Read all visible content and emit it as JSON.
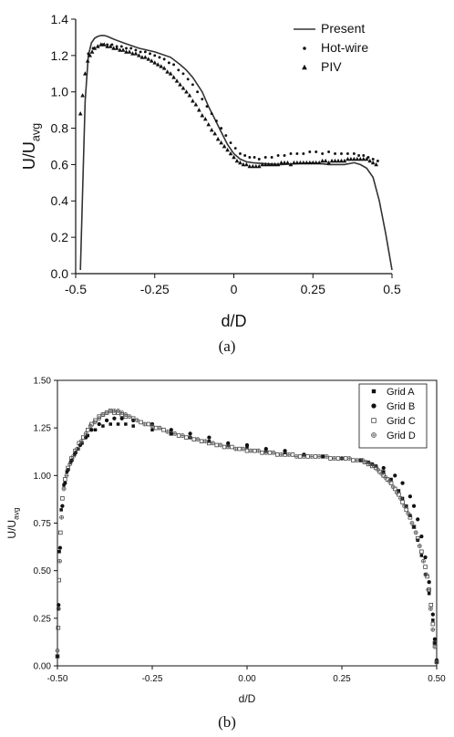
{
  "chart_data": [
    {
      "type": "line",
      "caption": "(a)",
      "xlabel": "d/D",
      "ylabel": "U/Uavg",
      "ylabel_main": "U/U",
      "ylabel_sub": "avg",
      "xlim": [
        -0.5,
        0.5
      ],
      "ylim": [
        0,
        1.4
      ],
      "xticks": [
        -0.5,
        -0.25,
        0,
        0.25,
        0.5
      ],
      "xtick_labels": [
        "-0.5",
        "-0.25",
        "0",
        "0.25",
        "0.5"
      ],
      "yticks": [
        0.0,
        0.2,
        0.4,
        0.6,
        0.8,
        1.0,
        1.2,
        1.4
      ],
      "ytick_labels": [
        "0.0",
        "0.2",
        "0.4",
        "0.6",
        "0.8",
        "1.0",
        "1.2",
        "1.4"
      ],
      "legend_position": "top-right",
      "grid": false,
      "series": [
        {
          "name": "Present",
          "marker": "line",
          "x": [
            -0.485,
            -0.478,
            -0.47,
            -0.46,
            -0.45,
            -0.44,
            -0.43,
            -0.42,
            -0.41,
            -0.4,
            -0.38,
            -0.35,
            -0.3,
            -0.25,
            -0.2,
            -0.17,
            -0.15,
            -0.13,
            -0.1,
            -0.08,
            -0.06,
            -0.04,
            -0.02,
            0.0,
            0.02,
            0.04,
            0.06,
            0.1,
            0.15,
            0.2,
            0.25,
            0.3,
            0.35,
            0.38,
            0.4,
            0.42,
            0.44,
            0.46,
            0.48,
            0.5
          ],
          "y": [
            0.02,
            0.45,
            0.95,
            1.2,
            1.27,
            1.295,
            1.305,
            1.31,
            1.31,
            1.305,
            1.29,
            1.27,
            1.24,
            1.22,
            1.19,
            1.15,
            1.12,
            1.08,
            1.0,
            0.92,
            0.85,
            0.78,
            0.71,
            0.66,
            0.63,
            0.615,
            0.61,
            0.605,
            0.6,
            0.605,
            0.61,
            0.6,
            0.6,
            0.61,
            0.6,
            0.58,
            0.53,
            0.4,
            0.22,
            0.02
          ]
        },
        {
          "name": "Hot-wire",
          "marker": "circle",
          "x": [
            -0.46,
            -0.445,
            -0.43,
            -0.415,
            -0.4,
            -0.385,
            -0.37,
            -0.355,
            -0.34,
            -0.325,
            -0.31,
            -0.295,
            -0.28,
            -0.265,
            -0.25,
            -0.235,
            -0.22,
            -0.205,
            -0.19,
            -0.175,
            -0.16,
            -0.145,
            -0.13,
            -0.115,
            -0.1,
            -0.085,
            -0.07,
            -0.055,
            -0.04,
            -0.025,
            -0.01,
            0.005,
            0.02,
            0.035,
            0.05,
            0.065,
            0.08,
            0.1,
            0.12,
            0.14,
            0.16,
            0.18,
            0.2,
            0.22,
            0.24,
            0.26,
            0.28,
            0.3,
            0.32,
            0.34,
            0.36,
            0.38,
            0.395,
            0.41,
            0.425,
            0.44,
            0.455
          ],
          "y": [
            1.21,
            1.24,
            1.25,
            1.26,
            1.26,
            1.26,
            1.25,
            1.25,
            1.24,
            1.24,
            1.23,
            1.22,
            1.22,
            1.21,
            1.2,
            1.19,
            1.18,
            1.16,
            1.15,
            1.12,
            1.1,
            1.07,
            1.04,
            1.0,
            0.96,
            0.92,
            0.88,
            0.84,
            0.8,
            0.76,
            0.72,
            0.69,
            0.66,
            0.65,
            0.64,
            0.64,
            0.63,
            0.64,
            0.64,
            0.65,
            0.65,
            0.66,
            0.66,
            0.66,
            0.67,
            0.67,
            0.66,
            0.67,
            0.66,
            0.66,
            0.66,
            0.66,
            0.65,
            0.65,
            0.64,
            0.63,
            0.62
          ]
        },
        {
          "name": "PIV",
          "marker": "triangle",
          "x": [
            -0.485,
            -0.478,
            -0.47,
            -0.462,
            -0.455,
            -0.448,
            -0.44,
            -0.43,
            -0.42,
            -0.41,
            -0.4,
            -0.39,
            -0.38,
            -0.37,
            -0.36,
            -0.35,
            -0.34,
            -0.33,
            -0.32,
            -0.31,
            -0.3,
            -0.29,
            -0.28,
            -0.27,
            -0.26,
            -0.25,
            -0.24,
            -0.23,
            -0.22,
            -0.21,
            -0.2,
            -0.19,
            -0.18,
            -0.17,
            -0.16,
            -0.15,
            -0.14,
            -0.13,
            -0.12,
            -0.11,
            -0.1,
            -0.09,
            -0.08,
            -0.07,
            -0.06,
            -0.05,
            -0.04,
            -0.03,
            -0.02,
            -0.01,
            0.0,
            0.01,
            0.02,
            0.03,
            0.04,
            0.05,
            0.06,
            0.07,
            0.08,
            0.09,
            0.1,
            0.11,
            0.12,
            0.13,
            0.14,
            0.15,
            0.16,
            0.17,
            0.18,
            0.19,
            0.2,
            0.21,
            0.22,
            0.23,
            0.24,
            0.25,
            0.26,
            0.27,
            0.28,
            0.29,
            0.3,
            0.31,
            0.32,
            0.33,
            0.34,
            0.35,
            0.36,
            0.37,
            0.38,
            0.39,
            0.4,
            0.41,
            0.42,
            0.43,
            0.44,
            0.45
          ],
          "y": [
            0.88,
            0.98,
            1.1,
            1.17,
            1.2,
            1.22,
            1.24,
            1.25,
            1.26,
            1.26,
            1.25,
            1.25,
            1.24,
            1.24,
            1.23,
            1.23,
            1.22,
            1.22,
            1.21,
            1.21,
            1.2,
            1.19,
            1.19,
            1.18,
            1.17,
            1.16,
            1.15,
            1.14,
            1.13,
            1.11,
            1.1,
            1.08,
            1.06,
            1.04,
            1.02,
            1.0,
            0.98,
            0.95,
            0.93,
            0.9,
            0.87,
            0.85,
            0.82,
            0.79,
            0.77,
            0.74,
            0.72,
            0.7,
            0.68,
            0.66,
            0.64,
            0.62,
            0.61,
            0.6,
            0.6,
            0.59,
            0.59,
            0.59,
            0.59,
            0.6,
            0.6,
            0.6,
            0.6,
            0.6,
            0.6,
            0.61,
            0.61,
            0.61,
            0.6,
            0.61,
            0.61,
            0.61,
            0.61,
            0.61,
            0.61,
            0.61,
            0.61,
            0.61,
            0.62,
            0.62,
            0.61,
            0.62,
            0.62,
            0.62,
            0.62,
            0.62,
            0.63,
            0.63,
            0.63,
            0.63,
            0.63,
            0.63,
            0.63,
            0.62,
            0.61,
            0.6
          ]
        }
      ]
    },
    {
      "type": "scatter",
      "caption": "(b)",
      "xlabel": "d/D",
      "ylabel": "U/Uavg",
      "ylabel_main": "U/U",
      "ylabel_sub": "avg",
      "xlim": [
        -0.5,
        0.5
      ],
      "ylim": [
        0,
        1.5
      ],
      "xticks": [
        -0.5,
        -0.25,
        0,
        0.25,
        0.5
      ],
      "xtick_labels": [
        "-0.50",
        "-0.25",
        "0.00",
        "0.25",
        "0.50"
      ],
      "yticks": [
        0.0,
        0.25,
        0.5,
        0.75,
        1.0,
        1.25,
        1.5
      ],
      "ytick_labels": [
        "0.00",
        "0.25",
        "0.50",
        "0.75",
        "1.00",
        "1.25",
        "1.50"
      ],
      "legend_position": "top-right",
      "grid": false,
      "series": [
        {
          "name": "Grid A",
          "marker": "filled-square",
          "x": [
            -0.5,
            -0.498,
            -0.495,
            -0.49,
            -0.483,
            -0.475,
            -0.465,
            -0.455,
            -0.445,
            -0.435,
            -0.42,
            -0.4,
            -0.38,
            -0.36,
            -0.34,
            -0.32,
            -0.3,
            -0.25,
            -0.2,
            -0.15,
            -0.1,
            -0.05,
            0.0,
            0.05,
            0.1,
            0.15,
            0.2,
            0.25,
            0.3,
            0.32,
            0.34,
            0.36,
            0.38,
            0.4,
            0.41,
            0.42,
            0.43,
            0.44,
            0.45,
            0.46,
            0.47,
            0.48,
            0.49,
            0.495,
            0.5
          ],
          "y": [
            0.05,
            0.3,
            0.6,
            0.82,
            0.95,
            1.02,
            1.07,
            1.11,
            1.14,
            1.17,
            1.21,
            1.24,
            1.26,
            1.27,
            1.27,
            1.27,
            1.26,
            1.24,
            1.22,
            1.2,
            1.18,
            1.16,
            1.15,
            1.13,
            1.12,
            1.11,
            1.1,
            1.09,
            1.08,
            1.07,
            1.05,
            1.02,
            0.98,
            0.92,
            0.88,
            0.84,
            0.79,
            0.73,
            0.66,
            0.58,
            0.48,
            0.38,
            0.24,
            0.12,
            0.02
          ]
        },
        {
          "name": "Grid B",
          "marker": "filled-circle",
          "x": [
            -0.5,
            -0.497,
            -0.493,
            -0.487,
            -0.48,
            -0.472,
            -0.462,
            -0.452,
            -0.44,
            -0.425,
            -0.41,
            -0.39,
            -0.37,
            -0.35,
            -0.33,
            -0.3,
            -0.25,
            -0.2,
            -0.15,
            -0.1,
            -0.05,
            0.0,
            0.05,
            0.1,
            0.15,
            0.2,
            0.25,
            0.3,
            0.33,
            0.36,
            0.39,
            0.41,
            0.43,
            0.44,
            0.45,
            0.46,
            0.47,
            0.48,
            0.49,
            0.495,
            0.5
          ],
          "y": [
            0.05,
            0.32,
            0.62,
            0.84,
            0.96,
            1.03,
            1.08,
            1.12,
            1.16,
            1.2,
            1.24,
            1.27,
            1.29,
            1.3,
            1.3,
            1.29,
            1.27,
            1.24,
            1.22,
            1.2,
            1.17,
            1.16,
            1.14,
            1.13,
            1.11,
            1.1,
            1.09,
            1.08,
            1.06,
            1.04,
            1.0,
            0.96,
            0.89,
            0.84,
            0.77,
            0.68,
            0.57,
            0.44,
            0.27,
            0.14,
            0.03
          ]
        },
        {
          "name": "Grid C",
          "marker": "open-square",
          "x": [
            -0.5,
            -0.498,
            -0.496,
            -0.492,
            -0.487,
            -0.48,
            -0.472,
            -0.463,
            -0.453,
            -0.443,
            -0.432,
            -0.42,
            -0.41,
            -0.4,
            -0.39,
            -0.38,
            -0.37,
            -0.36,
            -0.35,
            -0.34,
            -0.33,
            -0.32,
            -0.3,
            -0.28,
            -0.26,
            -0.24,
            -0.22,
            -0.2,
            -0.18,
            -0.16,
            -0.14,
            -0.12,
            -0.1,
            -0.08,
            -0.06,
            -0.04,
            -0.02,
            0.0,
            0.02,
            0.04,
            0.06,
            0.08,
            0.1,
            0.12,
            0.14,
            0.16,
            0.18,
            0.2,
            0.22,
            0.24,
            0.26,
            0.28,
            0.3,
            0.31,
            0.32,
            0.33,
            0.34,
            0.35,
            0.36,
            0.37,
            0.38,
            0.39,
            0.4,
            0.41,
            0.42,
            0.43,
            0.44,
            0.45,
            0.46,
            0.47,
            0.475,
            0.48,
            0.485,
            0.49,
            0.495,
            0.5
          ],
          "y": [
            0.05,
            0.2,
            0.45,
            0.7,
            0.88,
            0.98,
            1.04,
            1.09,
            1.13,
            1.17,
            1.2,
            1.24,
            1.27,
            1.29,
            1.31,
            1.32,
            1.33,
            1.34,
            1.33,
            1.33,
            1.32,
            1.31,
            1.3,
            1.28,
            1.27,
            1.25,
            1.24,
            1.22,
            1.21,
            1.2,
            1.19,
            1.18,
            1.17,
            1.16,
            1.15,
            1.15,
            1.14,
            1.13,
            1.13,
            1.12,
            1.12,
            1.11,
            1.11,
            1.11,
            1.1,
            1.1,
            1.1,
            1.1,
            1.09,
            1.09,
            1.09,
            1.08,
            1.08,
            1.07,
            1.06,
            1.05,
            1.04,
            1.02,
            1.0,
            0.98,
            0.96,
            0.93,
            0.9,
            0.86,
            0.82,
            0.78,
            0.73,
            0.67,
            0.6,
            0.52,
            0.47,
            0.4,
            0.32,
            0.22,
            0.12,
            0.02
          ]
        },
        {
          "name": "Grid D",
          "marker": "crossed-circle",
          "x": [
            -0.5,
            -0.497,
            -0.494,
            -0.489,
            -0.483,
            -0.476,
            -0.467,
            -0.458,
            -0.448,
            -0.437,
            -0.425,
            -0.413,
            -0.402,
            -0.39,
            -0.38,
            -0.37,
            -0.36,
            -0.35,
            -0.34,
            -0.33,
            -0.32,
            -0.31,
            -0.29,
            -0.27,
            -0.25,
            -0.23,
            -0.21,
            -0.19,
            -0.17,
            -0.15,
            -0.13,
            -0.11,
            -0.09,
            -0.07,
            -0.05,
            -0.03,
            -0.01,
            0.01,
            0.03,
            0.05,
            0.07,
            0.09,
            0.11,
            0.13,
            0.15,
            0.17,
            0.19,
            0.21,
            0.23,
            0.25,
            0.27,
            0.29,
            0.305,
            0.315,
            0.325,
            0.335,
            0.345,
            0.355,
            0.365,
            0.375,
            0.385,
            0.395,
            0.405,
            0.415,
            0.425,
            0.435,
            0.445,
            0.455,
            0.465,
            0.472,
            0.478,
            0.484,
            0.49,
            0.495,
            0.5
          ],
          "y": [
            0.08,
            0.3,
            0.55,
            0.78,
            0.93,
            1.0,
            1.06,
            1.1,
            1.14,
            1.18,
            1.22,
            1.26,
            1.28,
            1.3,
            1.32,
            1.33,
            1.34,
            1.34,
            1.34,
            1.33,
            1.32,
            1.31,
            1.29,
            1.27,
            1.26,
            1.25,
            1.23,
            1.22,
            1.21,
            1.2,
            1.19,
            1.18,
            1.17,
            1.16,
            1.15,
            1.14,
            1.14,
            1.13,
            1.13,
            1.12,
            1.12,
            1.11,
            1.11,
            1.1,
            1.1,
            1.1,
            1.1,
            1.1,
            1.09,
            1.09,
            1.09,
            1.08,
            1.08,
            1.07,
            1.06,
            1.05,
            1.03,
            1.01,
            0.99,
            0.97,
            0.94,
            0.91,
            0.88,
            0.84,
            0.8,
            0.75,
            0.7,
            0.63,
            0.55,
            0.48,
            0.4,
            0.3,
            0.19,
            0.1,
            0.02
          ]
        }
      ]
    }
  ]
}
